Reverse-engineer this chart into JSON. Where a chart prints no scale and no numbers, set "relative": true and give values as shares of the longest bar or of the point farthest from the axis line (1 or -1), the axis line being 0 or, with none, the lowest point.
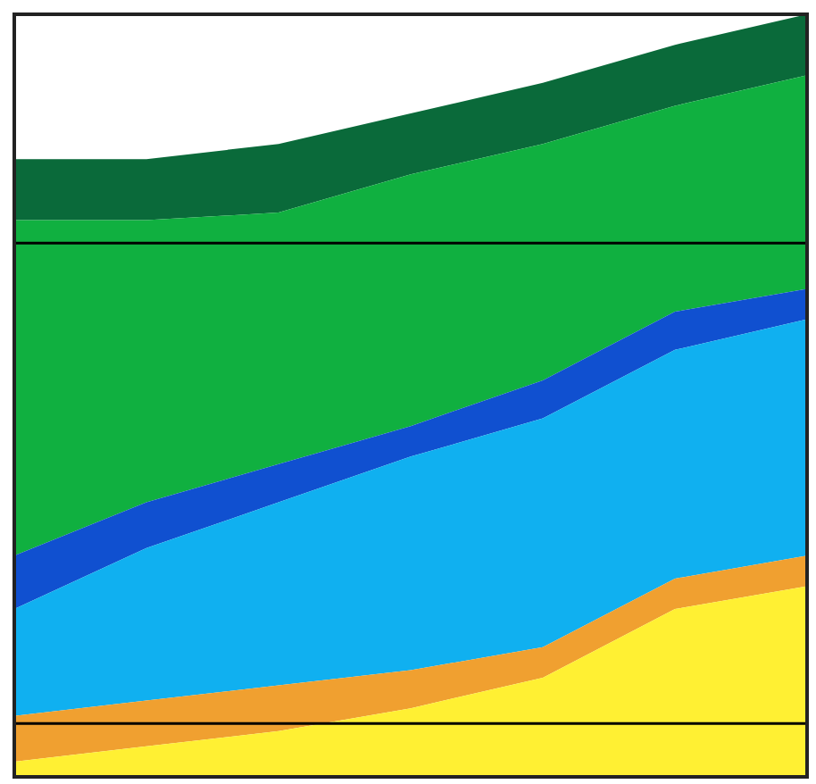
{
  "chart_data": {
    "type": "area",
    "stacked": true,
    "relative": true,
    "legend": false,
    "categories": [
      null,
      null,
      null,
      null,
      null,
      null,
      null
    ],
    "series": [
      {
        "color": "#fff033",
        "values": [
          0.02,
          0.04,
          0.06,
          0.09,
          0.13,
          0.22,
          0.25
        ]
      },
      {
        "color": "#f0a030",
        "values": [
          0.06,
          0.06,
          0.06,
          0.05,
          0.04,
          0.04,
          0.04
        ]
      },
      {
        "color": "#10b0f0",
        "values": [
          0.14,
          0.2,
          0.24,
          0.28,
          0.3,
          0.3,
          0.31
        ]
      },
      {
        "color": "#1050d0",
        "values": [
          0.07,
          0.06,
          0.05,
          0.04,
          0.05,
          0.05,
          0.04
        ]
      },
      {
        "color": "#10b040",
        "values": [
          0.44,
          0.37,
          0.33,
          0.33,
          0.31,
          0.27,
          0.28
        ]
      },
      {
        "color": "#0a6a3a",
        "values": [
          0.08,
          0.08,
          0.09,
          0.08,
          0.08,
          0.08,
          0.08
        ]
      }
    ],
    "ref_lines": [
      {
        "axis": "y",
        "value": 0.7,
        "color": "#000000"
      },
      {
        "axis": "y",
        "value": 0.07,
        "color": "#000000"
      }
    ]
  }
}
